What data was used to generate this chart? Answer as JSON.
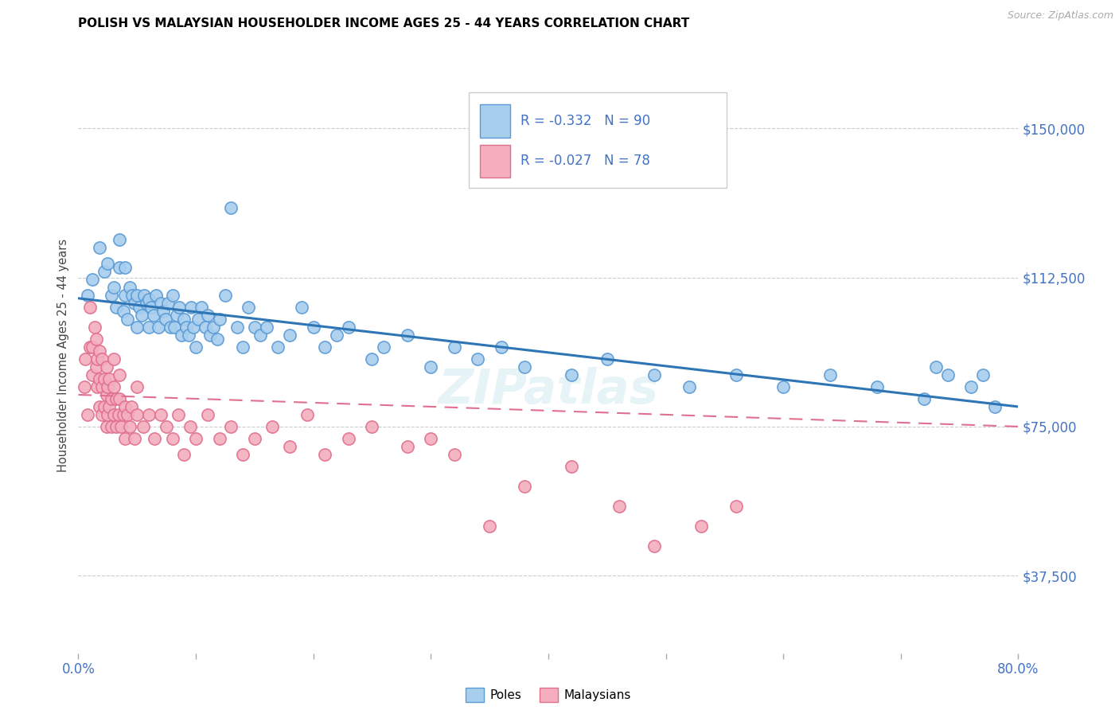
{
  "title": "POLISH VS MALAYSIAN HOUSEHOLDER INCOME AGES 25 - 44 YEARS CORRELATION CHART",
  "source": "Source: ZipAtlas.com",
  "ylabel": "Householder Income Ages 25 - 44 years",
  "xlim": [
    0.0,
    0.8
  ],
  "ylim": [
    18000,
    168000
  ],
  "yticks": [
    37500,
    75000,
    112500,
    150000
  ],
  "ytick_labels": [
    "$37,500",
    "$75,000",
    "$112,500",
    "$150,000"
  ],
  "legend_r_poles": "-0.332",
  "legend_n_poles": "90",
  "legend_r_malaysians": "-0.027",
  "legend_n_malaysians": "78",
  "poles_color": "#A8CEEE",
  "poles_edge_color": "#5B9BD5",
  "poles_line_color": "#2E75B6",
  "malaysians_color": "#F4AEBE",
  "malaysians_edge_color": "#E07090",
  "malaysians_line_color": "#E07090",
  "watermark": "ZIPatlas",
  "poles_scatter_x": [
    0.008,
    0.012,
    0.018,
    0.022,
    0.025,
    0.028,
    0.03,
    0.032,
    0.035,
    0.035,
    0.038,
    0.04,
    0.04,
    0.042,
    0.044,
    0.046,
    0.048,
    0.05,
    0.05,
    0.052,
    0.054,
    0.056,
    0.058,
    0.06,
    0.06,
    0.062,
    0.064,
    0.066,
    0.068,
    0.07,
    0.072,
    0.074,
    0.076,
    0.078,
    0.08,
    0.082,
    0.084,
    0.086,
    0.088,
    0.09,
    0.092,
    0.094,
    0.096,
    0.098,
    0.1,
    0.102,
    0.105,
    0.108,
    0.11,
    0.112,
    0.115,
    0.118,
    0.12,
    0.125,
    0.13,
    0.135,
    0.14,
    0.145,
    0.15,
    0.155,
    0.16,
    0.17,
    0.18,
    0.19,
    0.2,
    0.21,
    0.22,
    0.23,
    0.25,
    0.26,
    0.28,
    0.3,
    0.32,
    0.34,
    0.36,
    0.38,
    0.42,
    0.45,
    0.49,
    0.52,
    0.56,
    0.6,
    0.64,
    0.68,
    0.72,
    0.73,
    0.74,
    0.76,
    0.77,
    0.78
  ],
  "poles_scatter_y": [
    108000,
    112000,
    120000,
    114000,
    116000,
    108000,
    110000,
    105000,
    115000,
    122000,
    104000,
    108000,
    115000,
    102000,
    110000,
    108000,
    106000,
    100000,
    108000,
    105000,
    103000,
    108000,
    106000,
    100000,
    107000,
    105000,
    103000,
    108000,
    100000,
    106000,
    104000,
    102000,
    106000,
    100000,
    108000,
    100000,
    103000,
    105000,
    98000,
    102000,
    100000,
    98000,
    105000,
    100000,
    95000,
    102000,
    105000,
    100000,
    103000,
    98000,
    100000,
    97000,
    102000,
    108000,
    130000,
    100000,
    95000,
    105000,
    100000,
    98000,
    100000,
    95000,
    98000,
    105000,
    100000,
    95000,
    98000,
    100000,
    92000,
    95000,
    98000,
    90000,
    95000,
    92000,
    95000,
    90000,
    88000,
    92000,
    88000,
    85000,
    88000,
    85000,
    88000,
    85000,
    82000,
    90000,
    88000,
    85000,
    88000,
    80000
  ],
  "malaysians_scatter_x": [
    0.005,
    0.006,
    0.008,
    0.01,
    0.01,
    0.012,
    0.012,
    0.014,
    0.015,
    0.015,
    0.016,
    0.016,
    0.018,
    0.018,
    0.018,
    0.02,
    0.02,
    0.02,
    0.022,
    0.022,
    0.024,
    0.024,
    0.024,
    0.025,
    0.025,
    0.026,
    0.026,
    0.028,
    0.028,
    0.03,
    0.03,
    0.03,
    0.032,
    0.032,
    0.034,
    0.035,
    0.035,
    0.036,
    0.038,
    0.04,
    0.04,
    0.042,
    0.044,
    0.045,
    0.048,
    0.05,
    0.05,
    0.055,
    0.06,
    0.065,
    0.07,
    0.075,
    0.08,
    0.085,
    0.09,
    0.095,
    0.1,
    0.11,
    0.12,
    0.13,
    0.14,
    0.15,
    0.165,
    0.18,
    0.195,
    0.21,
    0.23,
    0.25,
    0.28,
    0.3,
    0.32,
    0.35,
    0.38,
    0.42,
    0.46,
    0.49,
    0.53,
    0.56
  ],
  "malaysians_scatter_y": [
    85000,
    92000,
    78000,
    95000,
    105000,
    88000,
    95000,
    100000,
    90000,
    97000,
    85000,
    92000,
    80000,
    87000,
    94000,
    78000,
    85000,
    92000,
    80000,
    87000,
    75000,
    83000,
    90000,
    78000,
    85000,
    80000,
    87000,
    75000,
    82000,
    78000,
    85000,
    92000,
    75000,
    82000,
    78000,
    82000,
    88000,
    75000,
    78000,
    80000,
    72000,
    78000,
    75000,
    80000,
    72000,
    78000,
    85000,
    75000,
    78000,
    72000,
    78000,
    75000,
    72000,
    78000,
    68000,
    75000,
    72000,
    78000,
    72000,
    75000,
    68000,
    72000,
    75000,
    70000,
    78000,
    68000,
    72000,
    75000,
    70000,
    72000,
    68000,
    50000,
    60000,
    65000,
    55000,
    45000,
    50000,
    55000
  ]
}
